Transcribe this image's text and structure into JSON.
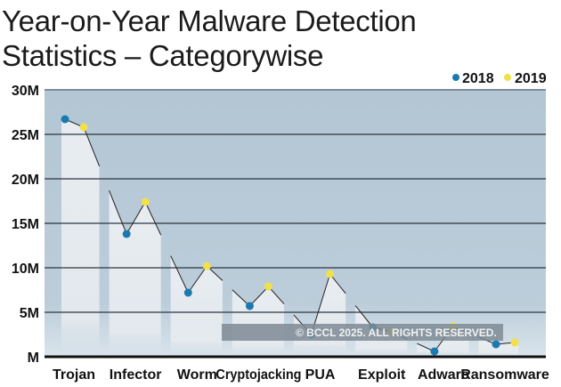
{
  "chart_data": {
    "type": "line",
    "title": "Year-on-Year Malware Detection Statistics – Categorywise",
    "xlabel": "",
    "ylabel": "",
    "categories": [
      "Trojan",
      "Infector",
      "Worm",
      "Cryptojacking",
      "PUA",
      "Exploit",
      "Adware",
      "Ransomware"
    ],
    "series": [
      {
        "name": "2018",
        "color": "#1a7ab0",
        "values": [
          26.7,
          13.8,
          7.2,
          5.7,
          2.5,
          3.3,
          0.6,
          1.4
        ]
      },
      {
        "name": "2019",
        "color": "#f2e04a",
        "values": [
          25.8,
          17.4,
          10.2,
          7.9,
          9.3,
          2.8,
          3.4,
          1.6
        ]
      }
    ],
    "unit": "M",
    "ylim": [
      0,
      30
    ],
    "yticks": [
      0,
      5,
      10,
      15,
      20,
      25,
      30
    ],
    "ytick_labels": [
      "M",
      "5M",
      "10M",
      "15M",
      "20M",
      "25M",
      "30M"
    ],
    "grid": true,
    "legend_position": "top-right",
    "background_color": "#b7c9d7"
  },
  "watermark": "© BCCL 2025. ALL RIGHTS RESERVED."
}
